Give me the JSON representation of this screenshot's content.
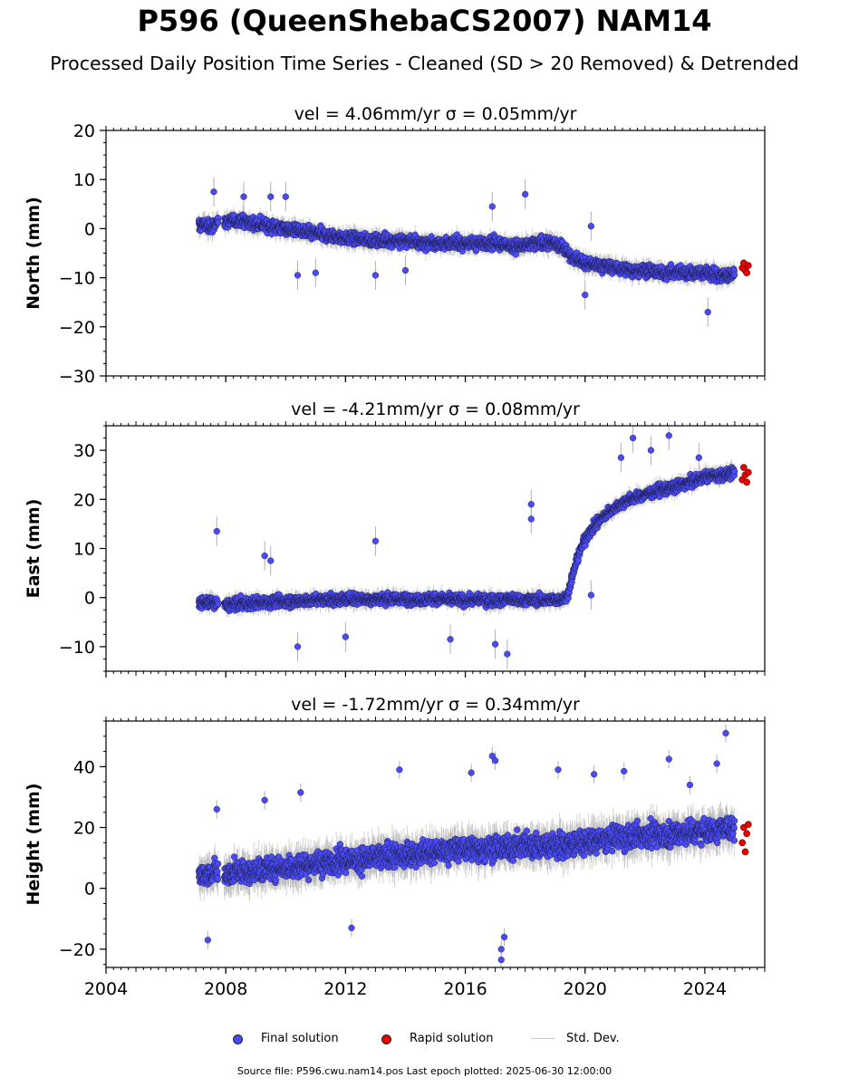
{
  "page": {
    "title": "P596 (QueenShebaCS2007) NAM14",
    "subtitle": "Processed Daily Position Time Series - Cleaned (SD > 20 Removed) & Detrended"
  },
  "legend": {
    "final_label": "Final solution",
    "rapid_label": "Rapid solution",
    "std_label": "Std. Dev."
  },
  "footer": {
    "text": "Source file: P596.cwu.nam14.pos  Last epoch plotted: 2025-06-30 12:00:00"
  },
  "colors": {
    "final": "#4b4bf5",
    "rapid": "#e80000",
    "std": "#b0b0b0"
  },
  "chart_data": [
    {
      "type": "scatter",
      "title": "vel = 4.06mm/yr   σ = 0.05mm/yr",
      "ylabel": "North (mm)",
      "ylim": [
        -30,
        20
      ],
      "yticks": [
        20,
        10,
        0,
        -10,
        -20,
        -30
      ],
      "xlim": [
        2004,
        2026
      ],
      "xticks": [
        2004,
        2008,
        2012,
        2016,
        2020,
        2024
      ],
      "grid": false,
      "series": [
        {
          "name": "Final solution",
          "style": "points",
          "x": [
            2007.1,
            2007.3,
            2007.5,
            2007.7,
            2008.0,
            2008.5,
            2009.0,
            2009.5,
            2010.0,
            2010.5,
            2011.0,
            2011.5,
            2012.0,
            2012.5,
            2013.0,
            2013.5,
            2014.0,
            2014.5,
            2015.0,
            2015.5,
            2016.0,
            2016.5,
            2017.0,
            2017.5,
            2018.0,
            2018.5,
            2019.0,
            2019.3,
            2019.6,
            2020.0,
            2020.5,
            2021.0,
            2021.5,
            2022.0,
            2022.5,
            2023.0,
            2023.5,
            2024.0,
            2024.5,
            2025.0
          ],
          "y": [
            0.5,
            1.0,
            0.0,
            1.5,
            1.5,
            1.5,
            1.0,
            0.5,
            0.0,
            -0.5,
            -1.0,
            -1.5,
            -2.0,
            -2.0,
            -2.5,
            -2.5,
            -2.5,
            -3.0,
            -3.0,
            -3.0,
            -3.0,
            -3.0,
            -3.0,
            -3.5,
            -3.5,
            -3.0,
            -3.0,
            -4.0,
            -6.0,
            -7.0,
            -7.5,
            -8.0,
            -8.5,
            -8.5,
            -9.0,
            -9.0,
            -9.0,
            -9.0,
            -9.5,
            -9.5
          ],
          "spread": 2.2
        },
        {
          "name": "Rapid solution",
          "style": "points",
          "x": [
            2025.25,
            2025.3,
            2025.35,
            2025.4,
            2025.45
          ],
          "y": [
            -8.0,
            -7.0,
            -8.5,
            -9.0,
            -7.5
          ],
          "spread": 0
        }
      ],
      "outliers": [
        [
          2007.6,
          7.5
        ],
        [
          2008.6,
          6.5
        ],
        [
          2009.5,
          6.5
        ],
        [
          2010.0,
          6.5
        ],
        [
          2010.4,
          -9.5
        ],
        [
          2011.0,
          -9.0
        ],
        [
          2013.0,
          -9.5
        ],
        [
          2014.0,
          -8.5
        ],
        [
          2016.9,
          4.5
        ],
        [
          2018.0,
          7.0
        ],
        [
          2020.2,
          0.5
        ],
        [
          2020.0,
          -13.5
        ],
        [
          2024.1,
          -17.0
        ]
      ]
    },
    {
      "type": "scatter",
      "title": "vel = -4.21mm/yr   σ = 0.08mm/yr",
      "ylabel": "East (mm)",
      "ylim": [
        -15,
        35
      ],
      "yticks": [
        30,
        20,
        10,
        0,
        -10
      ],
      "xlim": [
        2004,
        2026
      ],
      "xticks": [
        2004,
        2008,
        2012,
        2016,
        2020,
        2024
      ],
      "grid": false,
      "series": [
        {
          "name": "Final solution",
          "style": "points",
          "x": [
            2007.1,
            2007.5,
            2008.0,
            2009.0,
            2010.0,
            2011.0,
            2012.0,
            2013.0,
            2014.0,
            2015.0,
            2016.0,
            2017.0,
            2018.0,
            2019.0,
            2019.4,
            2019.6,
            2019.8,
            2020.0,
            2020.3,
            2020.6,
            2021.0,
            2021.5,
            2022.0,
            2022.5,
            2023.0,
            2023.5,
            2024.0,
            2024.5,
            2025.0
          ],
          "y": [
            -1.0,
            -1.0,
            -1.5,
            -1.0,
            -0.8,
            -0.5,
            -0.3,
            -0.3,
            -0.3,
            -0.3,
            -0.5,
            -0.5,
            -0.5,
            -0.5,
            0.0,
            5.0,
            9.0,
            12.0,
            14.5,
            16.5,
            18.5,
            20.0,
            21.0,
            22.0,
            22.5,
            23.5,
            24.5,
            25.0,
            25.5
          ],
          "spread": 2.0
        },
        {
          "name": "Rapid solution",
          "style": "points",
          "x": [
            2025.25,
            2025.3,
            2025.35,
            2025.4,
            2025.45
          ],
          "y": [
            24.0,
            26.5,
            25.0,
            23.5,
            25.5
          ],
          "spread": 0
        }
      ],
      "outliers": [
        [
          2007.7,
          13.5
        ],
        [
          2009.3,
          8.5
        ],
        [
          2009.5,
          7.5
        ],
        [
          2010.4,
          -10.0
        ],
        [
          2012.0,
          -8.0
        ],
        [
          2013.0,
          11.5
        ],
        [
          2015.5,
          -8.5
        ],
        [
          2017.0,
          -9.5
        ],
        [
          2017.4,
          -11.5
        ],
        [
          2018.2,
          19.0
        ],
        [
          2018.2,
          16.0
        ],
        [
          2020.2,
          0.5
        ],
        [
          2021.2,
          28.5
        ],
        [
          2021.6,
          32.5
        ],
        [
          2022.2,
          30.0
        ],
        [
          2022.8,
          33.0
        ],
        [
          2023.8,
          28.5
        ]
      ]
    },
    {
      "type": "scatter",
      "title": "vel = -1.72mm/yr   σ = 0.34mm/yr",
      "ylabel": "Height (mm)",
      "ylim": [
        -26,
        55
      ],
      "yticks": [
        40,
        20,
        0,
        -20
      ],
      "xlim": [
        2004,
        2026
      ],
      "xticks": [
        2004,
        2008,
        2012,
        2016,
        2020,
        2024
      ],
      "xticklabels": [
        "2004",
        "2008",
        "2012",
        "2016",
        "2020",
        "2024"
      ],
      "grid": false,
      "series": [
        {
          "name": "Final solution",
          "style": "points",
          "x": [
            2007.1,
            2007.5,
            2008.0,
            2009.0,
            2010.0,
            2011.0,
            2012.0,
            2013.0,
            2014.0,
            2015.0,
            2016.0,
            2017.0,
            2018.0,
            2019.0,
            2020.0,
            2021.0,
            2022.0,
            2023.0,
            2024.0,
            2025.0
          ],
          "y": [
            4.0,
            5.0,
            5.0,
            5.5,
            7.0,
            8.0,
            9.0,
            10.0,
            11.0,
            12.0,
            13.0,
            13.0,
            14.0,
            14.0,
            15.0,
            16.5,
            17.5,
            18.0,
            19.0,
            20.0
          ],
          "spread": 7.0
        },
        {
          "name": "Rapid solution",
          "style": "points",
          "x": [
            2025.25,
            2025.3,
            2025.35,
            2025.4,
            2025.45
          ],
          "y": [
            15.0,
            20.0,
            12.0,
            18.0,
            21.0
          ],
          "spread": 0
        }
      ],
      "outliers": [
        [
          2007.4,
          -17.0
        ],
        [
          2007.7,
          26.0
        ],
        [
          2009.3,
          29.0
        ],
        [
          2010.5,
          31.5
        ],
        [
          2012.2,
          -13.0
        ],
        [
          2013.8,
          39.0
        ],
        [
          2016.2,
          38.0
        ],
        [
          2016.9,
          43.5
        ],
        [
          2017.0,
          42.0
        ],
        [
          2017.2,
          -20.0
        ],
        [
          2017.2,
          -23.5
        ],
        [
          2017.3,
          -16.0
        ],
        [
          2019.1,
          39.0
        ],
        [
          2020.3,
          37.5
        ],
        [
          2021.3,
          38.5
        ],
        [
          2022.8,
          42.5
        ],
        [
          2023.5,
          34.0
        ],
        [
          2024.4,
          41.0
        ],
        [
          2024.7,
          51.0
        ]
      ]
    }
  ]
}
